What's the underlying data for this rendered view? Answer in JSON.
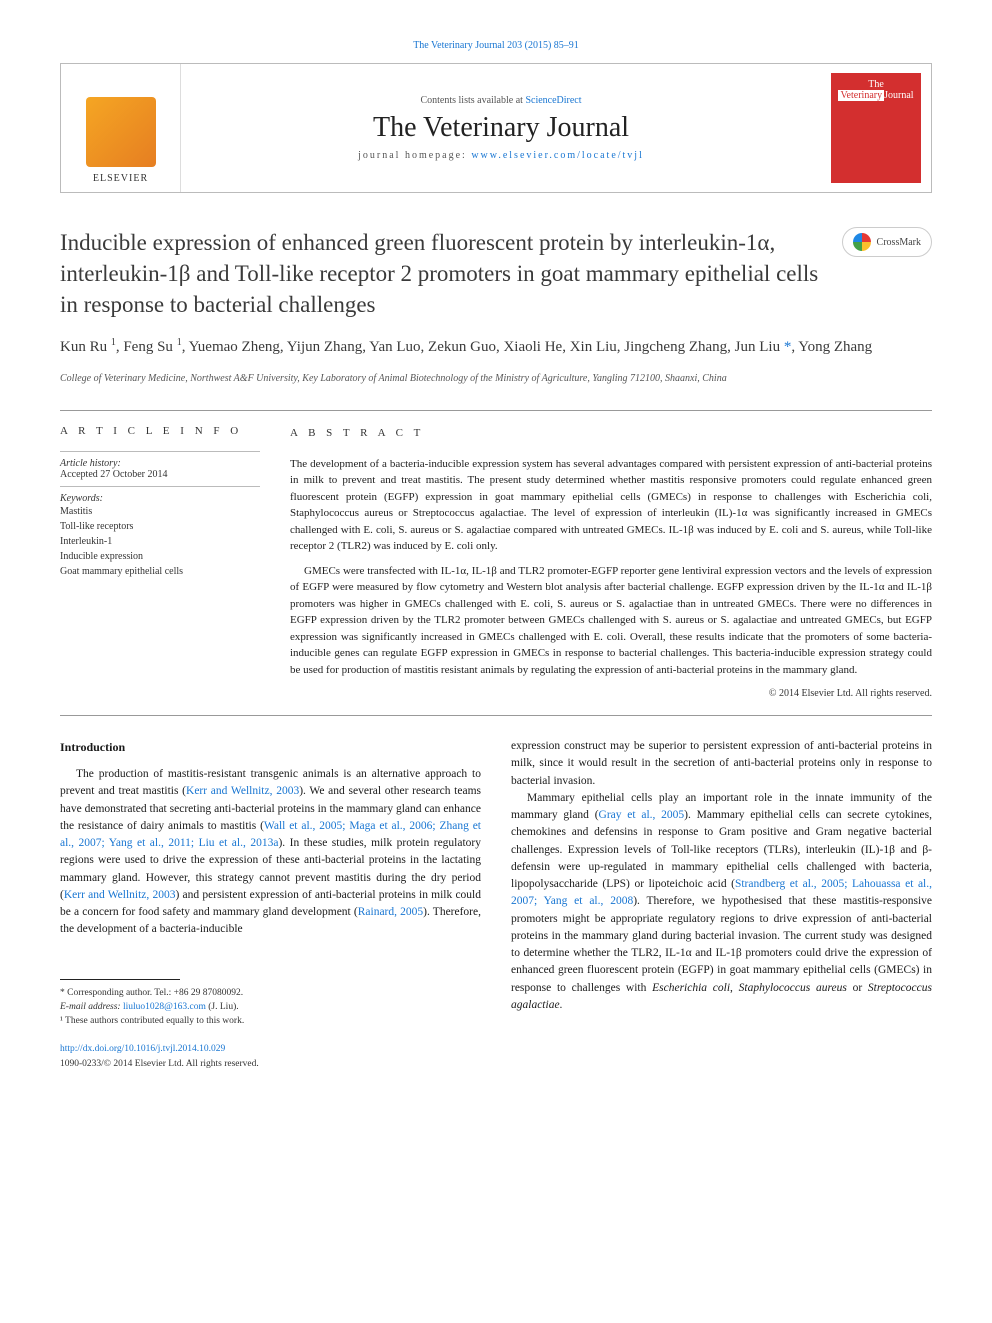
{
  "citation": {
    "prefix": "",
    "link_text": "The Veterinary Journal 203 (2015) 85–91",
    "link_color": "#1976d2"
  },
  "banner": {
    "elsevier_label": "ELSEVIER",
    "contents_prefix": "Contents lists available at ",
    "contents_link": "ScienceDirect",
    "journal_name": "The Veterinary Journal",
    "homepage_prefix": "journal homepage: ",
    "homepage_link": "www.elsevier.com/locate/tvjl",
    "cover_line1": "The",
    "cover_line2_a": "Veterinary",
    "cover_line2_b": "Journal"
  },
  "crossmark_label": "CrossMark",
  "title": "Inducible expression of enhanced green fluorescent protein by interleukin-1α, interleukin-1β and Toll-like receptor 2 promoters in goat mammary epithelial cells in response to bacterial challenges",
  "authors_html": "Kun Ru <sup>1</sup>, Feng Su <sup>1</sup>, Yuemao Zheng, Yijun Zhang, Yan Luo, Zekun Guo, Xiaoli He, Xin Liu, Jingcheng Zhang, Jun Liu <span class='corr'>*</span>, Yong Zhang",
  "affiliation": "College of Veterinary Medicine, Northwest A&F University, Key Laboratory of Animal Biotechnology of the Ministry of Agriculture, Yangling 712100, Shaanxi, China",
  "article_info": {
    "heading": "A R T I C L E   I N F O",
    "history_label": "Article history:",
    "history_value": "Accepted 27 October 2014",
    "keywords_label": "Keywords:",
    "keywords": [
      "Mastitis",
      "Toll-like receptors",
      "Interleukin-1",
      "Inducible expression",
      "Goat mammary epithelial cells"
    ]
  },
  "abstract": {
    "heading": "A B S T R A C T",
    "p1": "The development of a bacteria-inducible expression system has several advantages compared with persistent expression of anti-bacterial proteins in milk to prevent and treat mastitis. The present study determined whether mastitis responsive promoters could regulate enhanced green fluorescent protein (EGFP) expression in goat mammary epithelial cells (GMECs) in response to challenges with Escherichia coli, Staphylococcus aureus or Streptococcus agalactiae. The level of expression of interleukin (IL)-1α was significantly increased in GMECs challenged with E. coli, S. aureus or S. agalactiae compared with untreated GMECs. IL-1β was induced by E. coli and S. aureus, while Toll-like receptor 2 (TLR2) was induced by E. coli only.",
    "p2": "GMECs were transfected with IL-1α, IL-1β and TLR2 promoter-EGFP reporter gene lentiviral expression vectors and the levels of expression of EGFP were measured by flow cytometry and Western blot analysis after bacterial challenge. EGFP expression driven by the IL-1α and IL-1β promoters was higher in GMECs challenged with E. coli, S. aureus or S. agalactiae than in untreated GMECs. There were no differences in EGFP expression driven by the TLR2 promoter between GMECs challenged with S. aureus or S. agalactiae and untreated GMECs, but EGFP expression was significantly increased in GMECs challenged with E. coli. Overall, these results indicate that the promoters of some bacteria-inducible genes can regulate EGFP expression in GMECs in response to bacterial challenges. This bacteria-inducible expression strategy could be used for production of mastitis resistant animals by regulating the expression of anti-bacterial proteins in the mammary gland.",
    "copyright": "© 2014 Elsevier Ltd. All rights reserved."
  },
  "body": {
    "intro_heading": "Introduction",
    "left_p1_a": "The production of mastitis-resistant transgenic animals is an alternative approach to prevent and treat mastitis (",
    "left_ref1": "Kerr and Wellnitz, 2003",
    "left_p1_b": "). We and several other research teams have demonstrated that secreting anti-bacterial proteins in the mammary gland can enhance the resistance of dairy animals to mastitis (",
    "left_ref2": "Wall et al., 2005; Maga et al., 2006; Zhang et al., 2007; Yang et al., 2011; Liu et al., 2013a",
    "left_p1_c": "). In these studies, milk protein regulatory regions were used to drive the expression of these anti-bacterial proteins in the lactating mammary gland. However, this strategy cannot prevent mastitis during the dry period (",
    "left_ref3": "Kerr and Wellnitz, 2003",
    "left_p1_d": ") and persistent expression of anti-bacterial proteins in milk could be a concern for food safety and mammary gland development (",
    "left_ref4": "Rainard, 2005",
    "left_p1_e": "). Therefore, the development of a bacteria-inducible",
    "right_p1": "expression construct may be superior to persistent expression of anti-bacterial proteins in milk, since it would result in the secretion of anti-bacterial proteins only in response to bacterial invasion.",
    "right_p2_a": "Mammary epithelial cells play an important role in the innate immunity of the mammary gland (",
    "right_ref1": "Gray et al., 2005",
    "right_p2_b": "). Mammary epithelial cells can secrete cytokines, chemokines and defensins in response to Gram positive and Gram negative bacterial challenges. Expression levels of Toll-like receptors (TLRs), interleukin (IL)-1β and β-defensin were up-regulated in mammary epithelial cells challenged with bacteria, lipopolysaccharide (LPS) or lipoteichoic acid (",
    "right_ref2": "Strandberg et al., 2005; Lahouassa et al., 2007; Yang et al., 2008",
    "right_p2_c": "). Therefore, we hypothesised that these mastitis-responsive promoters might be appropriate regulatory regions to drive expression of anti-bacterial proteins in the mammary gland during bacterial invasion. The current study was designed to determine whether the TLR2, IL-1α and IL-1β promoters could drive the expression of enhanced green fluorescent protein (EGFP) in goat mammary epithelial cells (GMECs) in response to challenges with ",
    "right_em1": "Escherichia coli",
    "right_sep1": ", ",
    "right_em2": "Staphylococcus aureus",
    "right_sep2": " or ",
    "right_em3": "Streptococcus agalactiae",
    "right_end": "."
  },
  "footer": {
    "corr_line": "* Corresponding author. Tel.: +86 29 87080092.",
    "email_label": "E-mail address: ",
    "email_link": "liuluo1028@163.com",
    "email_suffix": " (J. Liu).",
    "note1": "¹ These authors contributed equally to this work."
  },
  "doi": {
    "link": "http://dx.doi.org/10.1016/j.tvjl.2014.10.029",
    "issn_line": "1090-0233/© 2014 Elsevier Ltd. All rights reserved."
  },
  "colors": {
    "link": "#1976d2",
    "text": "#1a1a1a",
    "muted": "#555555",
    "rule": "#999999",
    "cover_bg": "#d32f2f"
  },
  "typography": {
    "title_fontsize_pt": 17,
    "authors_fontsize_pt": 11,
    "body_fontsize_pt": 9,
    "abstract_fontsize_pt": 8.5
  }
}
